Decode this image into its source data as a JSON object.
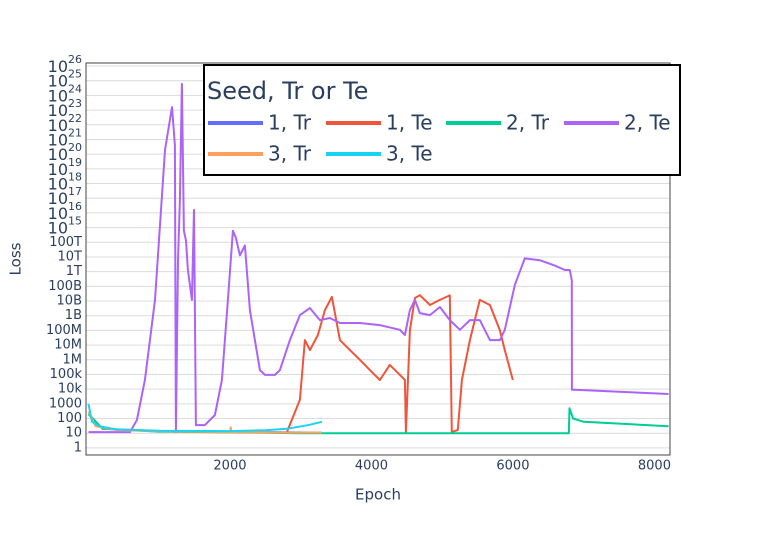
{
  "chart_data": {
    "type": "line",
    "x_label": "Epoch",
    "y_label": "Loss",
    "log_y": true,
    "grid": true,
    "xlim": [
      -35,
      8220
    ],
    "ylim": [
      0.33,
      1.6e+26
    ],
    "xticks": [
      2000,
      4000,
      6000,
      8000
    ],
    "yticks": [
      1,
      10,
      100,
      1000,
      {
        "value": 10000,
        "label": "10k"
      },
      {
        "value": 100000,
        "label": "100k"
      },
      {
        "value": 1000000,
        "label": "1M"
      },
      {
        "value": 10000000,
        "label": "10M"
      },
      {
        "value": 100000000,
        "label": "100M"
      },
      {
        "value": 1000000000,
        "label": "1B"
      },
      {
        "value": 10000000000,
        "label": "10B"
      },
      {
        "value": 100000000000,
        "label": "100B"
      },
      {
        "value": 1000000000000,
        "label": "1T"
      },
      {
        "value": 10000000000000,
        "label": "10T"
      },
      {
        "value": 100000000000000,
        "label": "100T"
      },
      {
        "value": 1000000000000000.0,
        "label": "10",
        "sup": "15"
      },
      {
        "value": 1e+16,
        "label": "10",
        "sup": "16"
      },
      {
        "value": 1e+17,
        "label": "10",
        "sup": "17"
      },
      {
        "value": 1e+18,
        "label": "10",
        "sup": "18"
      },
      {
        "value": 1e+19,
        "label": "10",
        "sup": "19"
      },
      {
        "value": 1e+20,
        "label": "10",
        "sup": "20"
      },
      {
        "value": 1e+21,
        "label": "10",
        "sup": "21"
      },
      {
        "value": 1e+22,
        "label": "10",
        "sup": "22"
      },
      {
        "value": 1e+23,
        "label": "10",
        "sup": "23"
      },
      {
        "value": 1e+24,
        "label": "10",
        "sup": "24"
      },
      {
        "value": 1e+25,
        "label": "10",
        "sup": "25"
      },
      {
        "value": 1e+26,
        "label": "10",
        "sup": "26"
      }
    ],
    "legend_title": "Seed, Tr or Te",
    "series": [
      {
        "name": "1, Tr",
        "color": "#636efa",
        "x": [
          0,
          200,
          1000,
          2500,
          3300
        ],
        "values": [
          200,
          20,
          14,
          12,
          11
        ]
      },
      {
        "name": "1, Te",
        "color": "#ef553b",
        "x": [
          2805,
          2989,
          3059,
          3130,
          3243,
          3342,
          3441,
          3554,
          3695,
          3836,
          3978,
          4119,
          4260,
          4402,
          4473,
          4487,
          4543,
          4614,
          4685,
          4826,
          4967,
          5108,
          5136,
          5221,
          5278,
          5391,
          5532,
          5674,
          5815,
          5885,
          5998
        ],
        "values": [
          12,
          1900,
          22000000,
          4600000,
          49000000,
          2400000000,
          19000000000,
          22000000,
          4600000,
          1000000,
          200000,
          42000,
          450000,
          93000,
          42000,
          12,
          100000000,
          16000000000,
          25000000000,
          5400000000,
          12000000000,
          24000000000,
          12,
          17,
          42000,
          22000000,
          12000000000,
          5400000000,
          100000000,
          4600000,
          42000
        ]
      },
      {
        "name": "2, Tr",
        "color": "#00cc96",
        "x": [
          0,
          200,
          1000,
          3000,
          6790,
          6800,
          6850,
          7000,
          8200
        ],
        "values": [
          200,
          20,
          13,
          10,
          10,
          500,
          100,
          60,
          30
        ]
      },
      {
        "name": "2, Te",
        "color": "#ab63fa",
        "x": [
          0,
          587,
          685,
          798,
          940,
          1081,
          1180,
          1222,
          1236,
          1265,
          1293,
          1321,
          1349,
          1378,
          1406,
          1462,
          1491,
          1519,
          1646,
          1787,
          1886,
          1971,
          2042,
          2084,
          2141,
          2211,
          2282,
          2353,
          2423,
          2494,
          2635,
          2706,
          2847,
          2989,
          3130,
          3271,
          3413,
          3554,
          3836,
          4119,
          4402,
          4473,
          4543,
          4614,
          4685,
          4826,
          4967,
          5108,
          5250,
          5391,
          5532,
          5674,
          5815,
          5885,
          6027,
          6168,
          6380,
          6592,
          6733,
          6804,
          6832,
          6833,
          6874,
          8200
        ],
        "values": [
          12,
          12,
          80,
          42000,
          12000000000,
          190000000000000000000,
          160000000000000000000000,
          400000000000000000000,
          12,
          6000000000000,
          80000000000000000,
          6000000000000000000000000,
          600000000000000,
          130000000000000,
          1300000000000,
          12000000000,
          16000000000000000,
          36,
          36,
          175,
          42000,
          12000000000,
          600000000000000,
          200000000000000,
          13000000000000,
          60000000000000,
          2400000000,
          22000000,
          200000,
          93000,
          93000,
          200000,
          22000000,
          1100000000,
          3300000000,
          500000000,
          700000000,
          320000000,
          320000000,
          230000000,
          110000000,
          49000000,
          2400000000,
          12000000000,
          1500000000,
          1100000000,
          3900000000,
          500000000,
          110000000,
          500000000,
          500000000,
          22000000,
          22000000,
          110000000,
          130000000000,
          8000000000000,
          6000000000000,
          2600000000000,
          1300000000000,
          1300000000000,
          250000000000,
          9000,
          9000,
          4700
        ]
      },
      {
        "name": "3, Tr",
        "color": "#ffa15a",
        "x": [
          0,
          100,
          400,
          1000,
          2000,
          2010,
          2020,
          2600,
          3300
        ],
        "values": [
          300,
          30,
          16,
          14,
          12,
          25,
          12,
          11,
          11
        ]
      },
      {
        "name": "3, Te",
        "color": "#19d3f3",
        "x": [
          0,
          50,
          150,
          400,
          1000,
          2000,
          2500,
          2800,
          3100,
          3300
        ],
        "values": [
          1000,
          60,
          30,
          18,
          15,
          14,
          16,
          20,
          35,
          60
        ]
      }
    ]
  }
}
